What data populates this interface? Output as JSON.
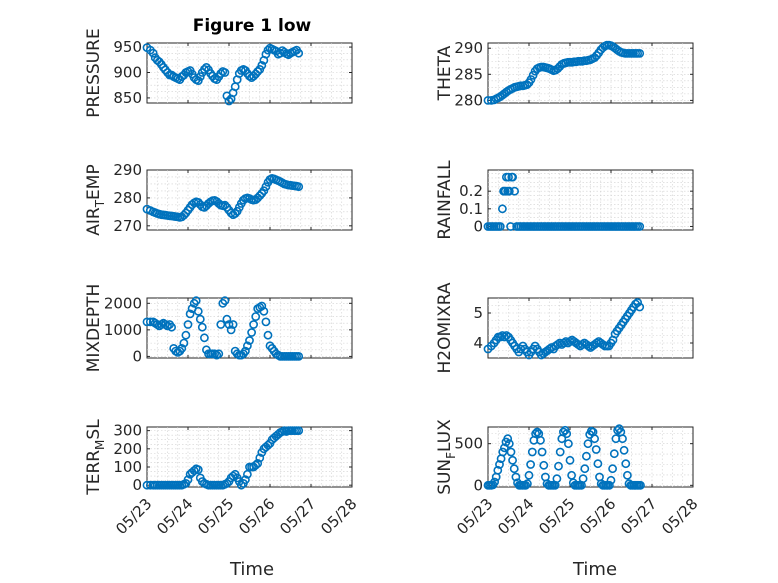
{
  "figure": {
    "title": "Figure 1 low",
    "marker_color": "#0072bd"
  },
  "chart_data": [
    {
      "type": "scatter",
      "id": "pressure",
      "ylabel": "PRESSURE",
      "title": "Figure 1 low",
      "x_days_labels": [
        "05/23",
        "05/24",
        "05/25",
        "05/26",
        "05/27",
        "05/28"
      ],
      "ylim": [
        840,
        958
      ],
      "yticks": [
        850,
        900,
        950
      ],
      "x": [
        0,
        0.08,
        0.15,
        0.2,
        0.25,
        0.3,
        0.35,
        0.4,
        0.45,
        0.5,
        0.55,
        0.6,
        0.65,
        0.7,
        0.75,
        0.8,
        0.85,
        0.9,
        0.95,
        1.0,
        1.05,
        1.1,
        1.15,
        1.2,
        1.25,
        1.3,
        1.35,
        1.4,
        1.45,
        1.5,
        1.55,
        1.6,
        1.65,
        1.7,
        1.75,
        1.8,
        1.85,
        1.9,
        1.95,
        2.0,
        2.05,
        2.1,
        2.15,
        2.2,
        2.25,
        2.3,
        2.35,
        2.4,
        2.45,
        2.5,
        2.55,
        2.6,
        2.65,
        2.7,
        2.75,
        2.8,
        2.85,
        2.9,
        2.95,
        3.0,
        3.05,
        3.1,
        3.15,
        3.2,
        3.25,
        3.3,
        3.35,
        3.4,
        3.45,
        3.5,
        3.55,
        3.6,
        3.65,
        3.7
      ],
      "y": [
        949,
        944,
        938,
        929,
        924,
        921,
        916,
        910,
        905,
        900,
        895,
        895,
        892,
        890,
        888,
        886,
        892,
        895,
        900,
        902,
        904,
        897,
        890,
        886,
        884,
        892,
        900,
        906,
        910,
        905,
        898,
        893,
        888,
        886,
        892,
        898,
        902,
        900,
        854,
        844,
        848,
        860,
        872,
        886,
        898,
        904,
        906,
        904,
        898,
        893,
        890,
        893,
        897,
        902,
        906,
        914,
        924,
        936,
        944,
        948,
        946,
        944,
        942,
        936,
        938,
        943,
        940,
        937,
        935,
        938,
        940,
        942,
        944,
        938
      ]
    },
    {
      "type": "scatter",
      "id": "theta",
      "ylabel": "THETA",
      "ylim": [
        279.5,
        291
      ],
      "yticks": [
        280,
        285,
        290
      ],
      "x": [
        0,
        0.08,
        0.15,
        0.2,
        0.25,
        0.3,
        0.35,
        0.4,
        0.45,
        0.5,
        0.55,
        0.6,
        0.65,
        0.7,
        0.75,
        0.8,
        0.85,
        0.9,
        0.95,
        1.0,
        1.05,
        1.1,
        1.15,
        1.2,
        1.25,
        1.3,
        1.35,
        1.4,
        1.45,
        1.5,
        1.55,
        1.6,
        1.65,
        1.7,
        1.75,
        1.8,
        1.85,
        1.9,
        1.95,
        2.0,
        2.05,
        2.1,
        2.15,
        2.2,
        2.25,
        2.3,
        2.35,
        2.4,
        2.45,
        2.5,
        2.55,
        2.6,
        2.65,
        2.7,
        2.75,
        2.8,
        2.85,
        2.9,
        2.95,
        3.0,
        3.05,
        3.1,
        3.15,
        3.2,
        3.25,
        3.3,
        3.35,
        3.4,
        3.45,
        3.5,
        3.55,
        3.6,
        3.65,
        3.7
      ],
      "y": [
        280,
        280,
        280.1,
        280.3,
        280.5,
        280.7,
        281,
        281.3,
        281.6,
        281.9,
        282.1,
        282.3,
        282.5,
        282.6,
        282.7,
        282.8,
        282.8,
        282.9,
        283,
        283.4,
        284,
        284.8,
        285.6,
        286.1,
        286.3,
        286.4,
        286.4,
        286.3,
        286.2,
        286.1,
        285.9,
        285.7,
        285.8,
        286.1,
        286.5,
        286.9,
        287.1,
        287.2,
        287.3,
        287.3,
        287.3,
        287.4,
        287.4,
        287.5,
        287.5,
        287.5,
        287.6,
        287.6,
        287.7,
        287.8,
        288,
        288.2,
        288.6,
        289.1,
        289.7,
        290.1,
        290.4,
        290.6,
        290.6,
        290.5,
        290.3,
        290,
        289.7,
        289.4,
        289.2,
        289.1,
        289,
        289,
        289,
        289,
        289,
        289,
        289,
        289
      ]
    },
    {
      "type": "scatter",
      "id": "air_temp",
      "ylabel": "AIR_TEMP",
      "ylim": [
        268.5,
        290
      ],
      "yticks": [
        270,
        280,
        290
      ],
      "x": [
        0,
        0.08,
        0.15,
        0.2,
        0.25,
        0.3,
        0.35,
        0.4,
        0.45,
        0.5,
        0.55,
        0.6,
        0.65,
        0.7,
        0.75,
        0.8,
        0.85,
        0.9,
        0.95,
        1.0,
        1.05,
        1.1,
        1.15,
        1.2,
        1.25,
        1.3,
        1.35,
        1.4,
        1.45,
        1.5,
        1.55,
        1.6,
        1.65,
        1.7,
        1.75,
        1.8,
        1.85,
        1.9,
        1.95,
        2.0,
        2.05,
        2.1,
        2.15,
        2.2,
        2.25,
        2.3,
        2.35,
        2.4,
        2.45,
        2.5,
        2.55,
        2.6,
        2.65,
        2.7,
        2.75,
        2.8,
        2.85,
        2.9,
        2.95,
        3.0,
        3.05,
        3.1,
        3.15,
        3.2,
        3.25,
        3.3,
        3.35,
        3.4,
        3.45,
        3.5,
        3.55,
        3.6,
        3.65,
        3.7
      ],
      "y": [
        276,
        275.5,
        275,
        274.7,
        274.4,
        274.2,
        274,
        273.9,
        273.8,
        273.7,
        273.6,
        273.5,
        273.4,
        273.3,
        273.2,
        273,
        273.2,
        273.8,
        274.6,
        275.6,
        276.6,
        277.6,
        278.2,
        278.6,
        278.4,
        277.6,
        276.8,
        276.6,
        277.2,
        278,
        278.6,
        279,
        279.1,
        278.7,
        278,
        277.4,
        277.2,
        277.4,
        276.6,
        275.6,
        274.6,
        274,
        274.4,
        275.2,
        276.6,
        278,
        279.2,
        279.8,
        280,
        279.8,
        279.4,
        279.2,
        279.4,
        280,
        280.8,
        281.6,
        282.6,
        284,
        285.6,
        286.6,
        287,
        286.8,
        286.5,
        286.2,
        285.8,
        285.4,
        285,
        284.8,
        284.6,
        284.5,
        284.4,
        284.3,
        284.2,
        284
      ]
    },
    {
      "type": "scatter",
      "id": "rainfall",
      "ylabel": "RAINFALL",
      "ylim": [
        -0.02,
        0.32
      ],
      "yticks": [
        0,
        0.1,
        0.2
      ],
      "x": [
        0,
        0.05,
        0.1,
        0.15,
        0.2,
        0.25,
        0.3,
        0.35,
        0.38,
        0.4,
        0.42,
        0.45,
        0.48,
        0.5,
        0.52,
        0.55,
        0.58,
        0.6,
        0.65,
        0.7,
        0.75,
        0.8,
        0.85,
        0.9,
        0.95,
        1.0,
        1.05,
        1.1,
        1.15,
        1.2,
        1.25,
        1.3,
        1.35,
        1.4,
        1.45,
        1.5,
        1.55,
        1.6,
        1.65,
        1.7,
        1.75,
        1.8,
        1.85,
        1.9,
        1.95,
        2.0,
        2.05,
        2.1,
        2.15,
        2.2,
        2.25,
        2.3,
        2.35,
        2.4,
        2.45,
        2.5,
        2.55,
        2.6,
        2.65,
        2.7,
        2.75,
        2.8,
        2.85,
        2.9,
        2.95,
        3.0,
        3.05,
        3.1,
        3.15,
        3.2,
        3.25,
        3.3,
        3.35,
        3.4,
        3.45,
        3.5,
        3.55,
        3.6,
        3.65,
        3.7
      ],
      "y": [
        0,
        0,
        0,
        0,
        0,
        0,
        0,
        0.1,
        0.2,
        0.2,
        0.2,
        0.28,
        0.2,
        0.28,
        0.2,
        0,
        0.28,
        0.28,
        0.2,
        0,
        0,
        0,
        0,
        0,
        0,
        0,
        0,
        0,
        0,
        0,
        0,
        0,
        0,
        0,
        0,
        0,
        0,
        0,
        0,
        0,
        0,
        0,
        0,
        0,
        0,
        0,
        0,
        0,
        0,
        0,
        0,
        0,
        0,
        0,
        0,
        0,
        0,
        0,
        0,
        0,
        0,
        0,
        0,
        0,
        0,
        0,
        0,
        0,
        0,
        0,
        0,
        0,
        0,
        0,
        0,
        0,
        0,
        0,
        0,
        0
      ]
    },
    {
      "type": "scatter",
      "id": "mixdepth",
      "ylabel": "MIXDEPTH",
      "ylim": [
        -60,
        2200
      ],
      "yticks": [
        0,
        1000,
        2000
      ],
      "x": [
        0,
        0.08,
        0.15,
        0.2,
        0.25,
        0.3,
        0.35,
        0.4,
        0.45,
        0.5,
        0.55,
        0.6,
        0.65,
        0.7,
        0.75,
        0.8,
        0.85,
        0.9,
        0.95,
        1.0,
        1.05,
        1.1,
        1.15,
        1.2,
        1.25,
        1.3,
        1.35,
        1.4,
        1.45,
        1.5,
        1.55,
        1.6,
        1.65,
        1.7,
        1.75,
        1.8,
        1.85,
        1.9,
        1.95,
        2.0,
        2.05,
        2.1,
        2.15,
        2.2,
        2.25,
        2.3,
        2.35,
        2.4,
        2.45,
        2.5,
        2.55,
        2.6,
        2.65,
        2.7,
        2.75,
        2.8,
        2.85,
        2.9,
        2.95,
        3.0,
        3.05,
        3.1,
        3.15,
        3.2,
        3.25,
        3.3,
        3.35,
        3.4,
        3.45,
        3.5,
        3.55,
        3.6,
        3.65,
        3.7
      ],
      "y": [
        1300,
        1300,
        1300,
        1250,
        1200,
        1150,
        1200,
        1250,
        1200,
        1150,
        1200,
        1100,
        300,
        200,
        150,
        200,
        300,
        500,
        800,
        1200,
        1600,
        1800,
        2000,
        2100,
        1700,
        1400,
        1100,
        700,
        250,
        100,
        100,
        100,
        100,
        50,
        100,
        1200,
        2000,
        2100,
        1400,
        1200,
        1000,
        1200,
        200,
        100,
        50,
        50,
        100,
        200,
        400,
        600,
        900,
        1200,
        1500,
        1800,
        1850,
        1900,
        1700,
        1300,
        800,
        400,
        300,
        200,
        100,
        50,
        0,
        0,
        0,
        0,
        0,
        0,
        0,
        0,
        0,
        0
      ]
    },
    {
      "type": "scatter",
      "id": "h2omixra",
      "ylabel": "H2OMIXRA",
      "ylim": [
        3.5,
        5.5
      ],
      "yticks": [
        4,
        5
      ],
      "x": [
        0,
        0.08,
        0.15,
        0.2,
        0.25,
        0.3,
        0.35,
        0.4,
        0.45,
        0.5,
        0.55,
        0.6,
        0.65,
        0.7,
        0.75,
        0.8,
        0.85,
        0.9,
        0.95,
        1.0,
        1.05,
        1.1,
        1.15,
        1.2,
        1.25,
        1.3,
        1.35,
        1.4,
        1.45,
        1.5,
        1.55,
        1.6,
        1.65,
        1.7,
        1.75,
        1.8,
        1.85,
        1.9,
        1.95,
        2.0,
        2.05,
        2.1,
        2.15,
        2.2,
        2.25,
        2.3,
        2.35,
        2.4,
        2.45,
        2.5,
        2.55,
        2.6,
        2.65,
        2.7,
        2.75,
        2.8,
        2.85,
        2.9,
        2.95,
        3.0,
        3.05,
        3.1,
        3.15,
        3.2,
        3.25,
        3.3,
        3.35,
        3.4,
        3.45,
        3.5,
        3.55,
        3.6,
        3.65,
        3.7
      ],
      "y": [
        3.8,
        3.9,
        4.0,
        4.1,
        4.2,
        4.2,
        4.25,
        4.2,
        4.25,
        4.2,
        4.1,
        4.0,
        3.9,
        3.8,
        3.7,
        3.8,
        3.9,
        3.8,
        3.7,
        3.6,
        3.7,
        3.8,
        3.9,
        3.8,
        3.7,
        3.6,
        3.65,
        3.7,
        3.75,
        3.8,
        3.85,
        3.8,
        3.9,
        3.95,
        4.0,
        3.95,
        4.0,
        4.05,
        4.0,
        4.05,
        4.1,
        4.05,
        4.0,
        3.95,
        3.9,
        3.95,
        4.0,
        3.95,
        3.9,
        3.85,
        3.9,
        3.95,
        4.0,
        4.05,
        4.0,
        3.95,
        3.9,
        3.9,
        3.9,
        4.0,
        4.1,
        4.3,
        4.4,
        4.5,
        4.6,
        4.7,
        4.8,
        4.9,
        5.0,
        5.1,
        5.2,
        5.3,
        5.35,
        5.2
      ]
    },
    {
      "type": "scatter",
      "id": "terr_msl",
      "ylabel": "TERR_MSL",
      "ylim": [
        -10,
        320
      ],
      "yticks": [
        0,
        100,
        200,
        300
      ],
      "x": [
        0,
        0.08,
        0.15,
        0.2,
        0.25,
        0.3,
        0.35,
        0.4,
        0.45,
        0.5,
        0.55,
        0.6,
        0.65,
        0.7,
        0.75,
        0.8,
        0.85,
        0.9,
        0.95,
        1.0,
        1.05,
        1.1,
        1.15,
        1.2,
        1.25,
        1.3,
        1.35,
        1.4,
        1.45,
        1.5,
        1.55,
        1.6,
        1.65,
        1.7,
        1.75,
        1.8,
        1.85,
        1.9,
        1.95,
        2.0,
        2.05,
        2.1,
        2.15,
        2.2,
        2.25,
        2.3,
        2.35,
        2.4,
        2.45,
        2.5,
        2.55,
        2.6,
        2.65,
        2.7,
        2.75,
        2.8,
        2.85,
        2.9,
        2.95,
        3.0,
        3.05,
        3.1,
        3.15,
        3.2,
        3.25,
        3.3,
        3.35,
        3.4,
        3.45,
        3.5,
        3.55,
        3.6,
        3.65,
        3.7
      ],
      "y": [
        0,
        0,
        0,
        0,
        0,
        0,
        0,
        0,
        0,
        0,
        0,
        0,
        0,
        0,
        0,
        0,
        0,
        5,
        10,
        30,
        60,
        70,
        80,
        90,
        85,
        40,
        20,
        10,
        5,
        0,
        0,
        0,
        0,
        0,
        0,
        0,
        0,
        5,
        10,
        20,
        40,
        50,
        60,
        40,
        20,
        0,
        10,
        30,
        60,
        100,
        100,
        100,
        110,
        120,
        150,
        180,
        200,
        210,
        220,
        230,
        250,
        260,
        270,
        280,
        290,
        295,
        300,
        295,
        300,
        300,
        300,
        300,
        300,
        300
      ]
    },
    {
      "type": "scatter",
      "id": "sun_flux",
      "ylabel": "SUN_FLUX",
      "ylim": [
        -20,
        700
      ],
      "yticks": [
        0,
        500
      ],
      "x": [
        0,
        0.04,
        0.08,
        0.12,
        0.16,
        0.2,
        0.24,
        0.28,
        0.32,
        0.36,
        0.4,
        0.44,
        0.48,
        0.52,
        0.56,
        0.6,
        0.64,
        0.68,
        0.72,
        0.76,
        0.8,
        0.84,
        0.88,
        0.92,
        0.96,
        1.0,
        1.04,
        1.08,
        1.12,
        1.16,
        1.2,
        1.24,
        1.28,
        1.32,
        1.36,
        1.4,
        1.44,
        1.48,
        1.52,
        1.56,
        1.6,
        1.64,
        1.68,
        1.72,
        1.76,
        1.8,
        1.84,
        1.88,
        1.92,
        1.96,
        2.0,
        2.04,
        2.08,
        2.12,
        2.16,
        2.2,
        2.24,
        2.28,
        2.32,
        2.36,
        2.4,
        2.44,
        2.48,
        2.52,
        2.56,
        2.6,
        2.64,
        2.68,
        2.72,
        2.76,
        2.8,
        2.84,
        2.88,
        2.92,
        2.96,
        3.0,
        3.04,
        3.08,
        3.12,
        3.16,
        3.2,
        3.24,
        3.28,
        3.32,
        3.36,
        3.4,
        3.44,
        3.48,
        3.52,
        3.56,
        3.6,
        3.64,
        3.68,
        3.72
      ],
      "y": [
        0,
        0,
        0,
        5,
        40,
        100,
        180,
        250,
        320,
        400,
        450,
        520,
        560,
        500,
        400,
        300,
        200,
        100,
        30,
        0,
        0,
        0,
        0,
        0,
        20,
        120,
        250,
        400,
        540,
        620,
        640,
        620,
        540,
        400,
        240,
        100,
        20,
        0,
        0,
        0,
        0,
        0,
        80,
        230,
        400,
        560,
        640,
        660,
        620,
        500,
        300,
        120,
        30,
        0,
        0,
        0,
        0,
        0,
        80,
        200,
        350,
        500,
        610,
        650,
        640,
        560,
        430,
        260,
        100,
        20,
        0,
        0,
        0,
        0,
        0,
        60,
        200,
        380,
        560,
        660,
        680,
        640,
        560,
        420,
        260,
        120,
        20,
        0,
        0,
        0,
        0,
        0,
        0,
        0
      ]
    }
  ],
  "axes_text": {
    "xlabel": "Time",
    "ylabels": [
      "PRESSURE",
      "THETA",
      "AIR_TEMP",
      "RAINFALL",
      "MIXDEPTH",
      "H2OMIXRA",
      "TERR_MSL",
      "SUN_FLUX"
    ]
  }
}
